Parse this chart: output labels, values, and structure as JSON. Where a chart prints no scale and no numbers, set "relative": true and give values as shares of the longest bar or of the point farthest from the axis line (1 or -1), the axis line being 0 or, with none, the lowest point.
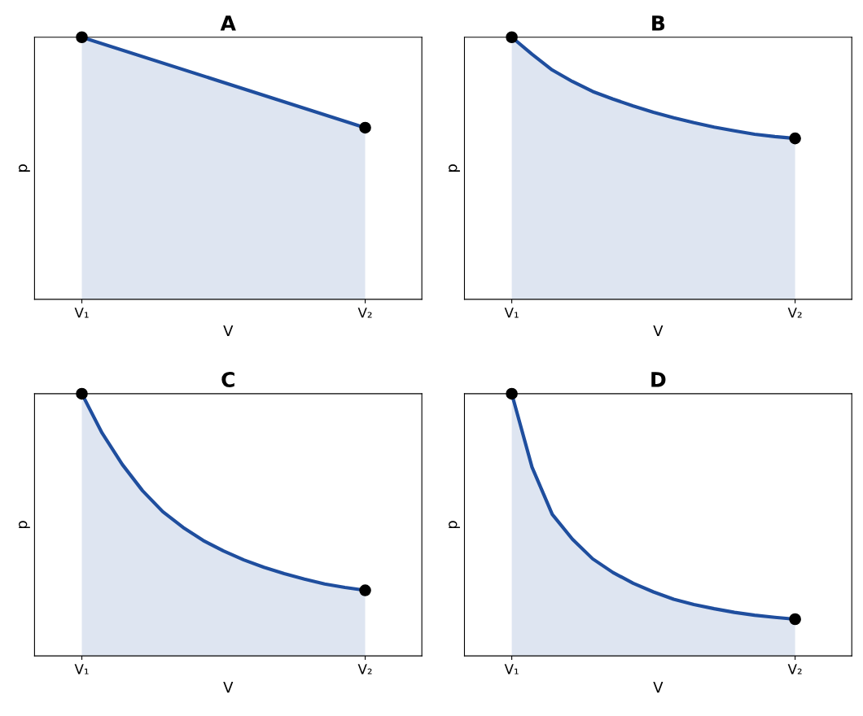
{
  "chart_data": [
    {
      "type": "area",
      "title": "A",
      "xlabel": "V",
      "ylabel": "p",
      "relative": true,
      "tick_labels": "x",
      "categories": [
        "V₁",
        "V₂"
      ],
      "series": [
        {
          "color": "#1f4e9e",
          "values": [
            1,
            0.655
          ]
        },
        {
          "type": "scatter",
          "color": "#000000",
          "values": [
            1,
            0.655
          ]
        }
      ]
    },
    {
      "type": "area",
      "title": "B",
      "xlabel": "V",
      "ylabel": "p",
      "relative": true,
      "tick_labels": "x",
      "categories": [
        "V₁",
        null,
        null,
        null,
        null,
        null,
        null,
        null,
        null,
        null,
        null,
        null,
        null,
        null,
        "V₂"
      ],
      "series": [
        {
          "color": "#1f4e9e",
          "values": [
            1,
            0.935,
            0.875,
            0.831,
            0.793,
            0.764,
            0.738,
            0.714,
            0.693,
            0.674,
            0.657,
            0.643,
            0.63,
            0.621,
            0.614
          ]
        },
        {
          "type": "scatter",
          "color": "#000000",
          "values": [
            1,
            null,
            null,
            null,
            null,
            null,
            null,
            null,
            null,
            null,
            null,
            null,
            null,
            null,
            0.614
          ]
        }
      ]
    },
    {
      "type": "area",
      "title": "C",
      "xlabel": "V",
      "ylabel": "p",
      "relative": true,
      "tick_labels": "x",
      "categories": [
        "V₁",
        null,
        null,
        null,
        null,
        null,
        null,
        null,
        null,
        null,
        null,
        null,
        null,
        null,
        "V₂"
      ],
      "series": [
        {
          "color": "#1f4e9e",
          "values": [
            1,
            0.85,
            0.73,
            0.63,
            0.55,
            0.49,
            0.44,
            0.4,
            0.366,
            0.338,
            0.314,
            0.293,
            0.274,
            0.261,
            0.25
          ]
        },
        {
          "type": "scatter",
          "color": "#000000",
          "values": [
            1,
            null,
            null,
            null,
            null,
            null,
            null,
            null,
            null,
            null,
            null,
            null,
            null,
            null,
            0.25
          ]
        }
      ]
    },
    {
      "type": "area",
      "title": "D",
      "xlabel": "V",
      "ylabel": "p",
      "relative": true,
      "tick_labels": "x",
      "categories": [
        "V₁",
        null,
        null,
        null,
        null,
        null,
        null,
        null,
        null,
        null,
        null,
        null,
        null,
        null,
        "V₂"
      ],
      "series": [
        {
          "color": "#1f4e9e",
          "values": [
            1,
            0.72,
            0.54,
            0.445,
            0.37,
            0.318,
            0.277,
            0.244,
            0.216,
            0.196,
            0.18,
            0.166,
            0.155,
            0.147,
            0.14
          ]
        },
        {
          "type": "scatter",
          "color": "#000000",
          "values": [
            1,
            null,
            null,
            null,
            null,
            null,
            null,
            null,
            null,
            null,
            null,
            null,
            null,
            null,
            0.14
          ]
        }
      ]
    }
  ]
}
